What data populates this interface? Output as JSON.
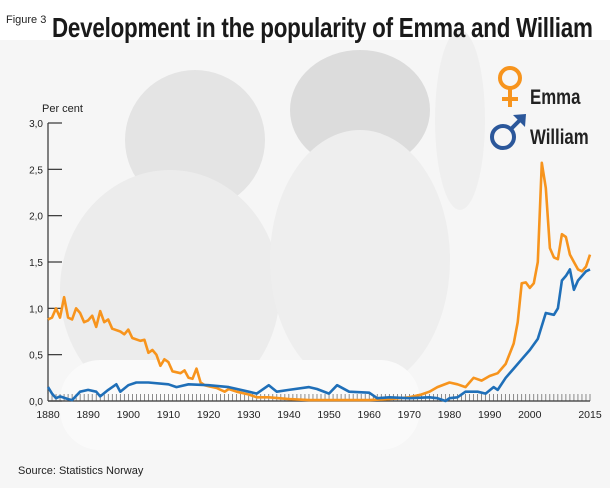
{
  "figure_label": "Figure 3",
  "source": "Source: Statistics Norway",
  "colors": {
    "emma": "#f7941d",
    "william": "#1f6fb8",
    "william_symbol": "#2b579a"
  },
  "chart_data": {
    "type": "line",
    "title": "Development in the popularity of Emma and William",
    "ylabel": "Per cent",
    "xlabel": "",
    "ylim": [
      0,
      3.0
    ],
    "xlim": [
      1880,
      2015
    ],
    "yticks": [
      "0,0",
      "0,5",
      "1,0",
      "1,5",
      "2,0",
      "2,5",
      "3,0"
    ],
    "ytick_values": [
      0,
      0.5,
      1.0,
      1.5,
      2.0,
      2.5,
      3.0
    ],
    "xticks": [
      "1880",
      "1890",
      "1900",
      "1910",
      "1920",
      "1930",
      "1940",
      "1950",
      "1960",
      "1970",
      "1980",
      "1990",
      "2000",
      "2015"
    ],
    "xtick_values": [
      1880,
      1890,
      1900,
      1910,
      1920,
      1930,
      1940,
      1950,
      1960,
      1970,
      1980,
      1990,
      2000,
      2015
    ],
    "grid": false,
    "legend_placement": "top-right",
    "series": [
      {
        "name": "Emma",
        "icon": "female-symbol",
        "x": [
          1880,
          1881,
          1882,
          1883,
          1884,
          1885,
          1886,
          1887,
          1888,
          1889,
          1890,
          1891,
          1892,
          1893,
          1894,
          1895,
          1896,
          1898,
          1899,
          1900,
          1901,
          1903,
          1904,
          1905,
          1906,
          1907,
          1908,
          1909,
          1910,
          1911,
          1913,
          1914,
          1915,
          1916,
          1917,
          1918,
          1919,
          1920,
          1922,
          1924,
          1925,
          1927,
          1930,
          1932,
          1935,
          1940,
          1945,
          1950,
          1955,
          1960,
          1965,
          1970,
          1973,
          1975,
          1977,
          1980,
          1982,
          1984,
          1986,
          1988,
          1990,
          1992,
          1994,
          1996,
          1997,
          1998,
          1999,
          2000,
          2001,
          2002,
          2003,
          2004,
          2005,
          2006,
          2007,
          2008,
          2009,
          2010,
          2011,
          2012,
          2013,
          2014,
          2015
        ],
        "values": [
          0.88,
          0.9,
          1.0,
          0.9,
          1.12,
          0.9,
          0.88,
          1.0,
          0.95,
          0.85,
          0.87,
          0.92,
          0.8,
          0.97,
          0.85,
          0.88,
          0.78,
          0.75,
          0.72,
          0.77,
          0.68,
          0.65,
          0.66,
          0.52,
          0.55,
          0.5,
          0.38,
          0.45,
          0.42,
          0.32,
          0.3,
          0.33,
          0.25,
          0.24,
          0.35,
          0.2,
          0.17,
          0.16,
          0.14,
          0.1,
          0.13,
          0.1,
          0.07,
          0.04,
          0.04,
          0.02,
          0.01,
          0.01,
          0.01,
          0.01,
          0.02,
          0.04,
          0.07,
          0.1,
          0.15,
          0.2,
          0.18,
          0.15,
          0.25,
          0.22,
          0.27,
          0.3,
          0.4,
          0.62,
          0.85,
          1.27,
          1.28,
          1.22,
          1.27,
          1.5,
          2.57,
          2.3,
          1.65,
          1.55,
          1.53,
          1.8,
          1.77,
          1.58,
          1.5,
          1.42,
          1.4,
          1.45,
          1.58
        ]
      },
      {
        "name": "William",
        "icon": "male-symbol",
        "x": [
          1880,
          1881,
          1882,
          1883,
          1885,
          1886,
          1888,
          1890,
          1892,
          1893,
          1895,
          1897,
          1898,
          1900,
          1902,
          1905,
          1910,
          1912,
          1915,
          1920,
          1925,
          1930,
          1932,
          1935,
          1937,
          1940,
          1945,
          1947,
          1950,
          1952,
          1955,
          1960,
          1962,
          1965,
          1970,
          1975,
          1977,
          1979,
          1980,
          1982,
          1984,
          1987,
          1989,
          1991,
          1992,
          1994,
          1996,
          1998,
          2000,
          2002,
          2004,
          2006,
          2007,
          2008,
          2009,
          2010,
          2011,
          2012,
          2014,
          2015
        ],
        "values": [
          0.15,
          0.08,
          0.03,
          0.05,
          0.02,
          0.01,
          0.1,
          0.12,
          0.1,
          0.05,
          0.12,
          0.18,
          0.1,
          0.17,
          0.2,
          0.2,
          0.18,
          0.15,
          0.18,
          0.17,
          0.15,
          0.1,
          0.08,
          0.17,
          0.1,
          0.12,
          0.15,
          0.13,
          0.08,
          0.17,
          0.1,
          0.09,
          0.03,
          0.04,
          0.03,
          0.04,
          0.03,
          0.0,
          0.03,
          0.04,
          0.1,
          0.1,
          0.08,
          0.15,
          0.12,
          0.25,
          0.35,
          0.45,
          0.55,
          0.67,
          0.95,
          0.93,
          1.0,
          1.3,
          1.35,
          1.42,
          1.2,
          1.3,
          1.4,
          1.42
        ]
      }
    ]
  }
}
